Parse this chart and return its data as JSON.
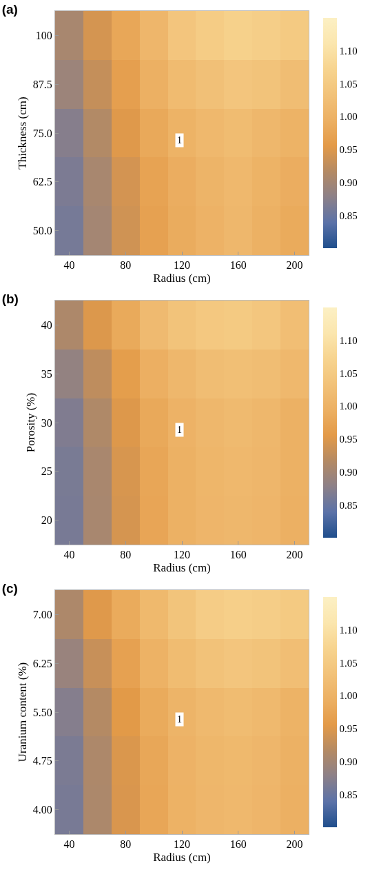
{
  "chart_data": [
    {
      "type": "heatmap",
      "title": "(a)",
      "xlabel": "Radius (cm)",
      "ylabel": "Thickness (cm)",
      "categories": [
        "40",
        null,
        "80",
        null,
        "120",
        null,
        "160",
        null,
        "200"
      ],
      "y_categories": [
        "100",
        "87.5",
        "75.0",
        "62.5",
        "50.0"
      ],
      "cells": [
        [
          0.905,
          0.943,
          0.978,
          1.008,
          1.04,
          1.055,
          1.065,
          1.06,
          1.05
        ],
        [
          0.893,
          0.93,
          0.965,
          0.995,
          1.018,
          1.03,
          1.04,
          1.035,
          1.023
        ],
        [
          0.873,
          0.915,
          0.952,
          0.982,
          1.0,
          1.012,
          1.02,
          1.01,
          1.0
        ],
        [
          0.865,
          0.905,
          0.942,
          0.972,
          0.99,
          1.004,
          1.012,
          1.0,
          0.99
        ],
        [
          0.86,
          0.901,
          0.939,
          0.968,
          0.987,
          0.999,
          1.01,
          0.997,
          0.985
        ]
      ],
      "clim": [
        0.8,
        1.15
      ],
      "cticks": [
        0.85,
        {
          "value": 0.9,
          "label": "0.90"
        },
        0.95,
        {
          "value": 1.0,
          "label": "1.00"
        },
        1.05,
        {
          "value": 1.1,
          "label": "1.10"
        }
      ],
      "colors": [
        "#1f4e8c",
        "#5b72a8",
        "#8c8088",
        "#b48a64",
        "#e39a48",
        "#ecb063",
        "#f2c279",
        "#f7d48f",
        "#fbe6ae",
        "#fcf0c4"
      ],
      "annotations": [
        "1"
      ]
    },
    {
      "type": "heatmap",
      "title": "(b)",
      "xlabel": "Radius (cm)",
      "ylabel": "Porosity (%)",
      "categories": [
        "40",
        null,
        "80",
        null,
        "120",
        null,
        "160",
        null,
        "200"
      ],
      "y_categories": [
        "40",
        "35",
        "30",
        "25",
        "20"
      ],
      "cells": [
        [
          0.91,
          0.95,
          0.983,
          1.017,
          1.035,
          1.046,
          1.05,
          1.043,
          1.024
        ],
        [
          0.885,
          0.925,
          0.962,
          0.993,
          1.01,
          1.022,
          1.027,
          1.022,
          1.012
        ],
        [
          0.868,
          0.912,
          0.951,
          0.982,
          0.999,
          1.01,
          1.015,
          1.01,
          0.997
        ],
        [
          0.863,
          0.906,
          0.946,
          0.977,
          0.997,
          1.007,
          1.012,
          1.008,
          0.997
        ],
        [
          0.862,
          0.905,
          0.944,
          0.975,
          0.996,
          1.006,
          1.01,
          1.006,
          0.995
        ]
      ],
      "clim": [
        0.8,
        1.15
      ],
      "cticks": [
        0.85,
        {
          "value": 0.9,
          "label": "0.90"
        },
        0.95,
        {
          "value": 1.0,
          "label": "1.00"
        },
        1.05,
        {
          "value": 1.1,
          "label": "1.10"
        }
      ],
      "colors": [
        "#1f4e8c",
        "#5b72a8",
        "#8c8088",
        "#b48a64",
        "#e39a48",
        "#ecb063",
        "#f2c279",
        "#f7d48f",
        "#fbe6ae",
        "#fcf0c4"
      ],
      "annotations": [
        "1"
      ]
    },
    {
      "type": "heatmap",
      "title": "(c)",
      "xlabel": "Radius (cm)",
      "ylabel": "Uranium content (%)",
      "categories": [
        "40",
        null,
        "80",
        null,
        "120",
        null,
        "160",
        null,
        "200"
      ],
      "y_categories": [
        "7.00",
        "6.25",
        "5.50",
        "4.75",
        "4.00"
      ],
      "cells": [
        [
          0.91,
          0.952,
          0.985,
          1.013,
          1.037,
          1.056,
          1.062,
          1.058,
          1.05
        ],
        [
          0.89,
          0.932,
          0.968,
          0.998,
          1.02,
          1.034,
          1.04,
          1.035,
          1.024
        ],
        [
          0.872,
          0.917,
          0.955,
          0.985,
          1.004,
          1.014,
          1.02,
          1.014,
          1.0
        ],
        [
          0.864,
          0.91,
          0.948,
          0.978,
          0.999,
          1.009,
          1.013,
          1.008,
          0.997
        ],
        [
          0.862,
          0.909,
          0.947,
          0.977,
          0.998,
          1.008,
          1.012,
          1.006,
          0.995
        ]
      ],
      "clim": [
        0.8,
        1.15
      ],
      "cticks": [
        0.85,
        {
          "value": 0.9,
          "label": "0.90"
        },
        0.95,
        {
          "value": 1.0,
          "label": "1.00"
        },
        1.05,
        {
          "value": 1.1,
          "label": "1.10"
        }
      ],
      "colors": [
        "#1f4e8c",
        "#5b72a8",
        "#8c8088",
        "#b48a64",
        "#e39a48",
        "#ecb063",
        "#f2c279",
        "#f7d48f",
        "#fbe6ae",
        "#fcf0c4"
      ],
      "annotations": [
        "1"
      ]
    }
  ]
}
